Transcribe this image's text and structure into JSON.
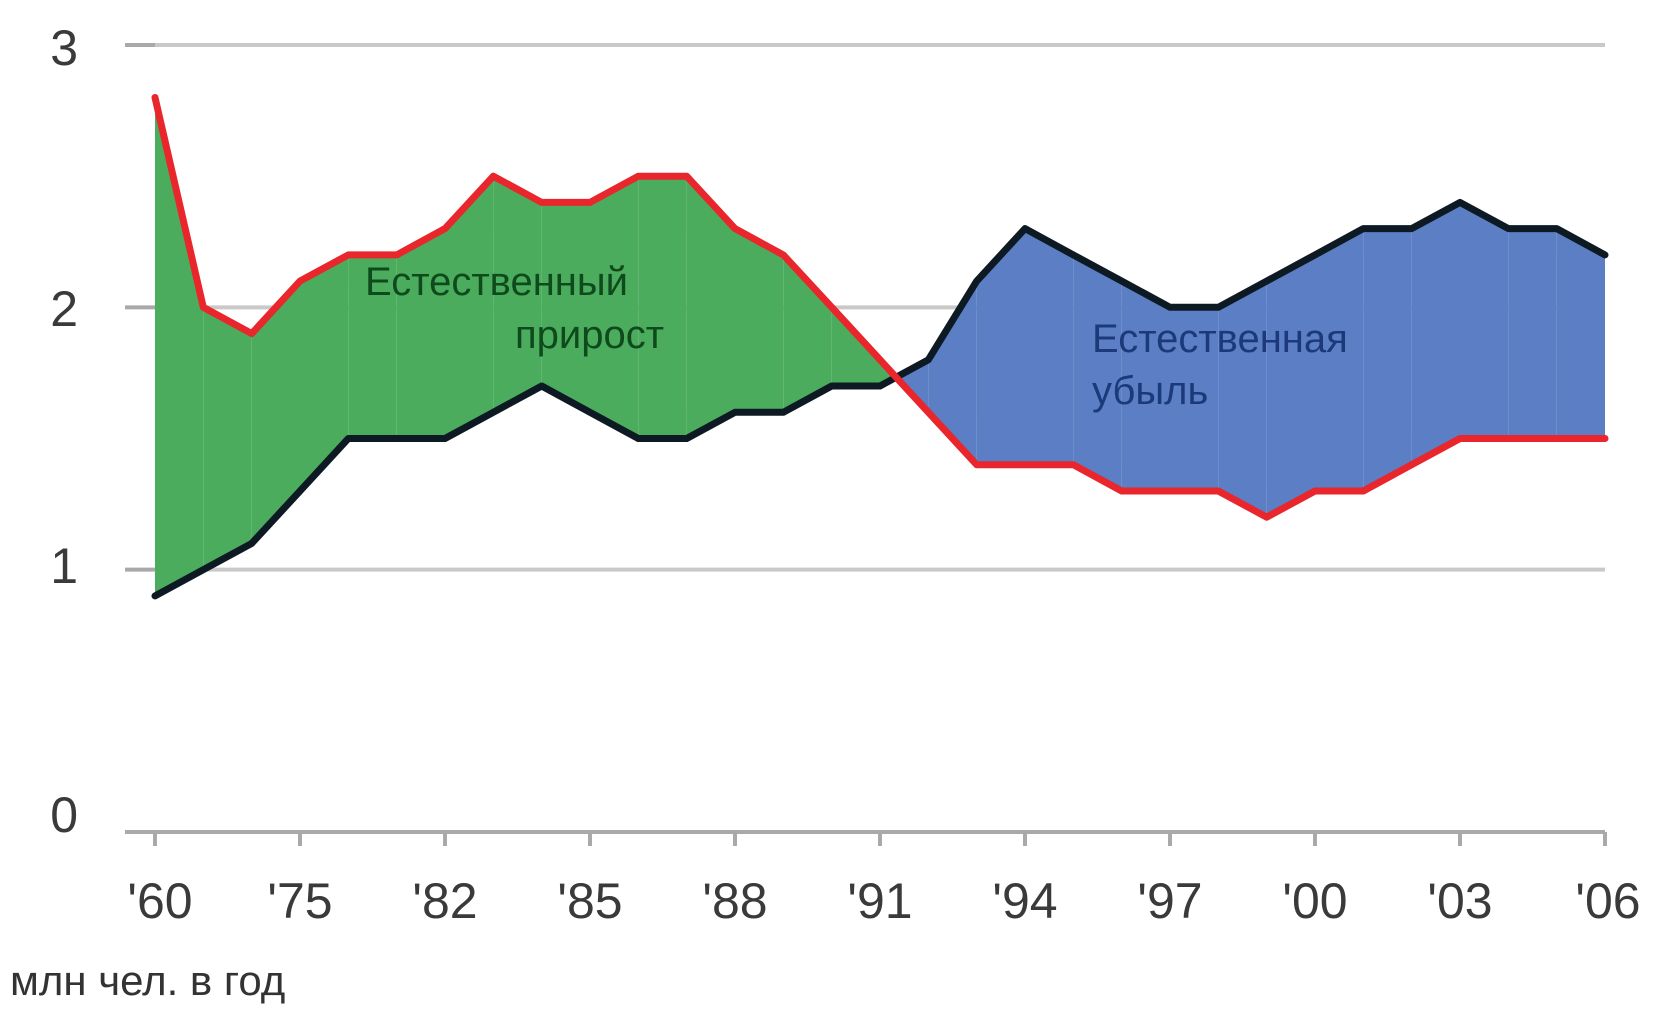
{
  "chart_data": {
    "type": "area",
    "title": "",
    "xlabel": "",
    "ylabel": "",
    "unit_label": "млн чел. в год",
    "ylim": [
      0,
      3
    ],
    "yticks": [
      "0",
      "1",
      "2",
      "3"
    ],
    "x_tick_labels": [
      "'60",
      "'75",
      "'82",
      "'85",
      "'88",
      "'91",
      "'94",
      "'97",
      "'00",
      "'03",
      "'06"
    ],
    "grid": true,
    "series": [
      {
        "role": "births",
        "color": "#e8262b",
        "values": [
          2.8,
          2.0,
          1.9,
          2.1,
          2.2,
          2.2,
          2.3,
          2.5,
          2.4,
          2.4,
          2.5,
          2.5,
          2.3,
          2.2,
          2.0,
          1.8,
          1.6,
          1.4,
          1.4,
          1.4,
          1.3,
          1.3,
          1.3,
          1.2,
          1.3,
          1.3,
          1.4,
          1.5,
          1.5,
          1.5,
          1.5
        ]
      },
      {
        "role": "deaths",
        "color": "#0d1a24",
        "values": [
          0.9,
          1.0,
          1.1,
          1.3,
          1.5,
          1.5,
          1.5,
          1.6,
          1.7,
          1.6,
          1.5,
          1.5,
          1.6,
          1.6,
          1.7,
          1.7,
          1.8,
          2.1,
          2.3,
          2.2,
          2.1,
          2.0,
          2.0,
          2.1,
          2.2,
          2.3,
          2.3,
          2.4,
          2.3,
          2.3,
          2.2
        ]
      }
    ],
    "regions": [
      {
        "label_lines": [
          "Естественный",
          "прирост"
        ],
        "fill": "#4cac5e",
        "text_color": "#0e4a1c"
      },
      {
        "label_lines": [
          "Естественная",
          "убыль"
        ],
        "fill": "#5b7ec4",
        "text_color": "#1c3a7a"
      }
    ]
  }
}
